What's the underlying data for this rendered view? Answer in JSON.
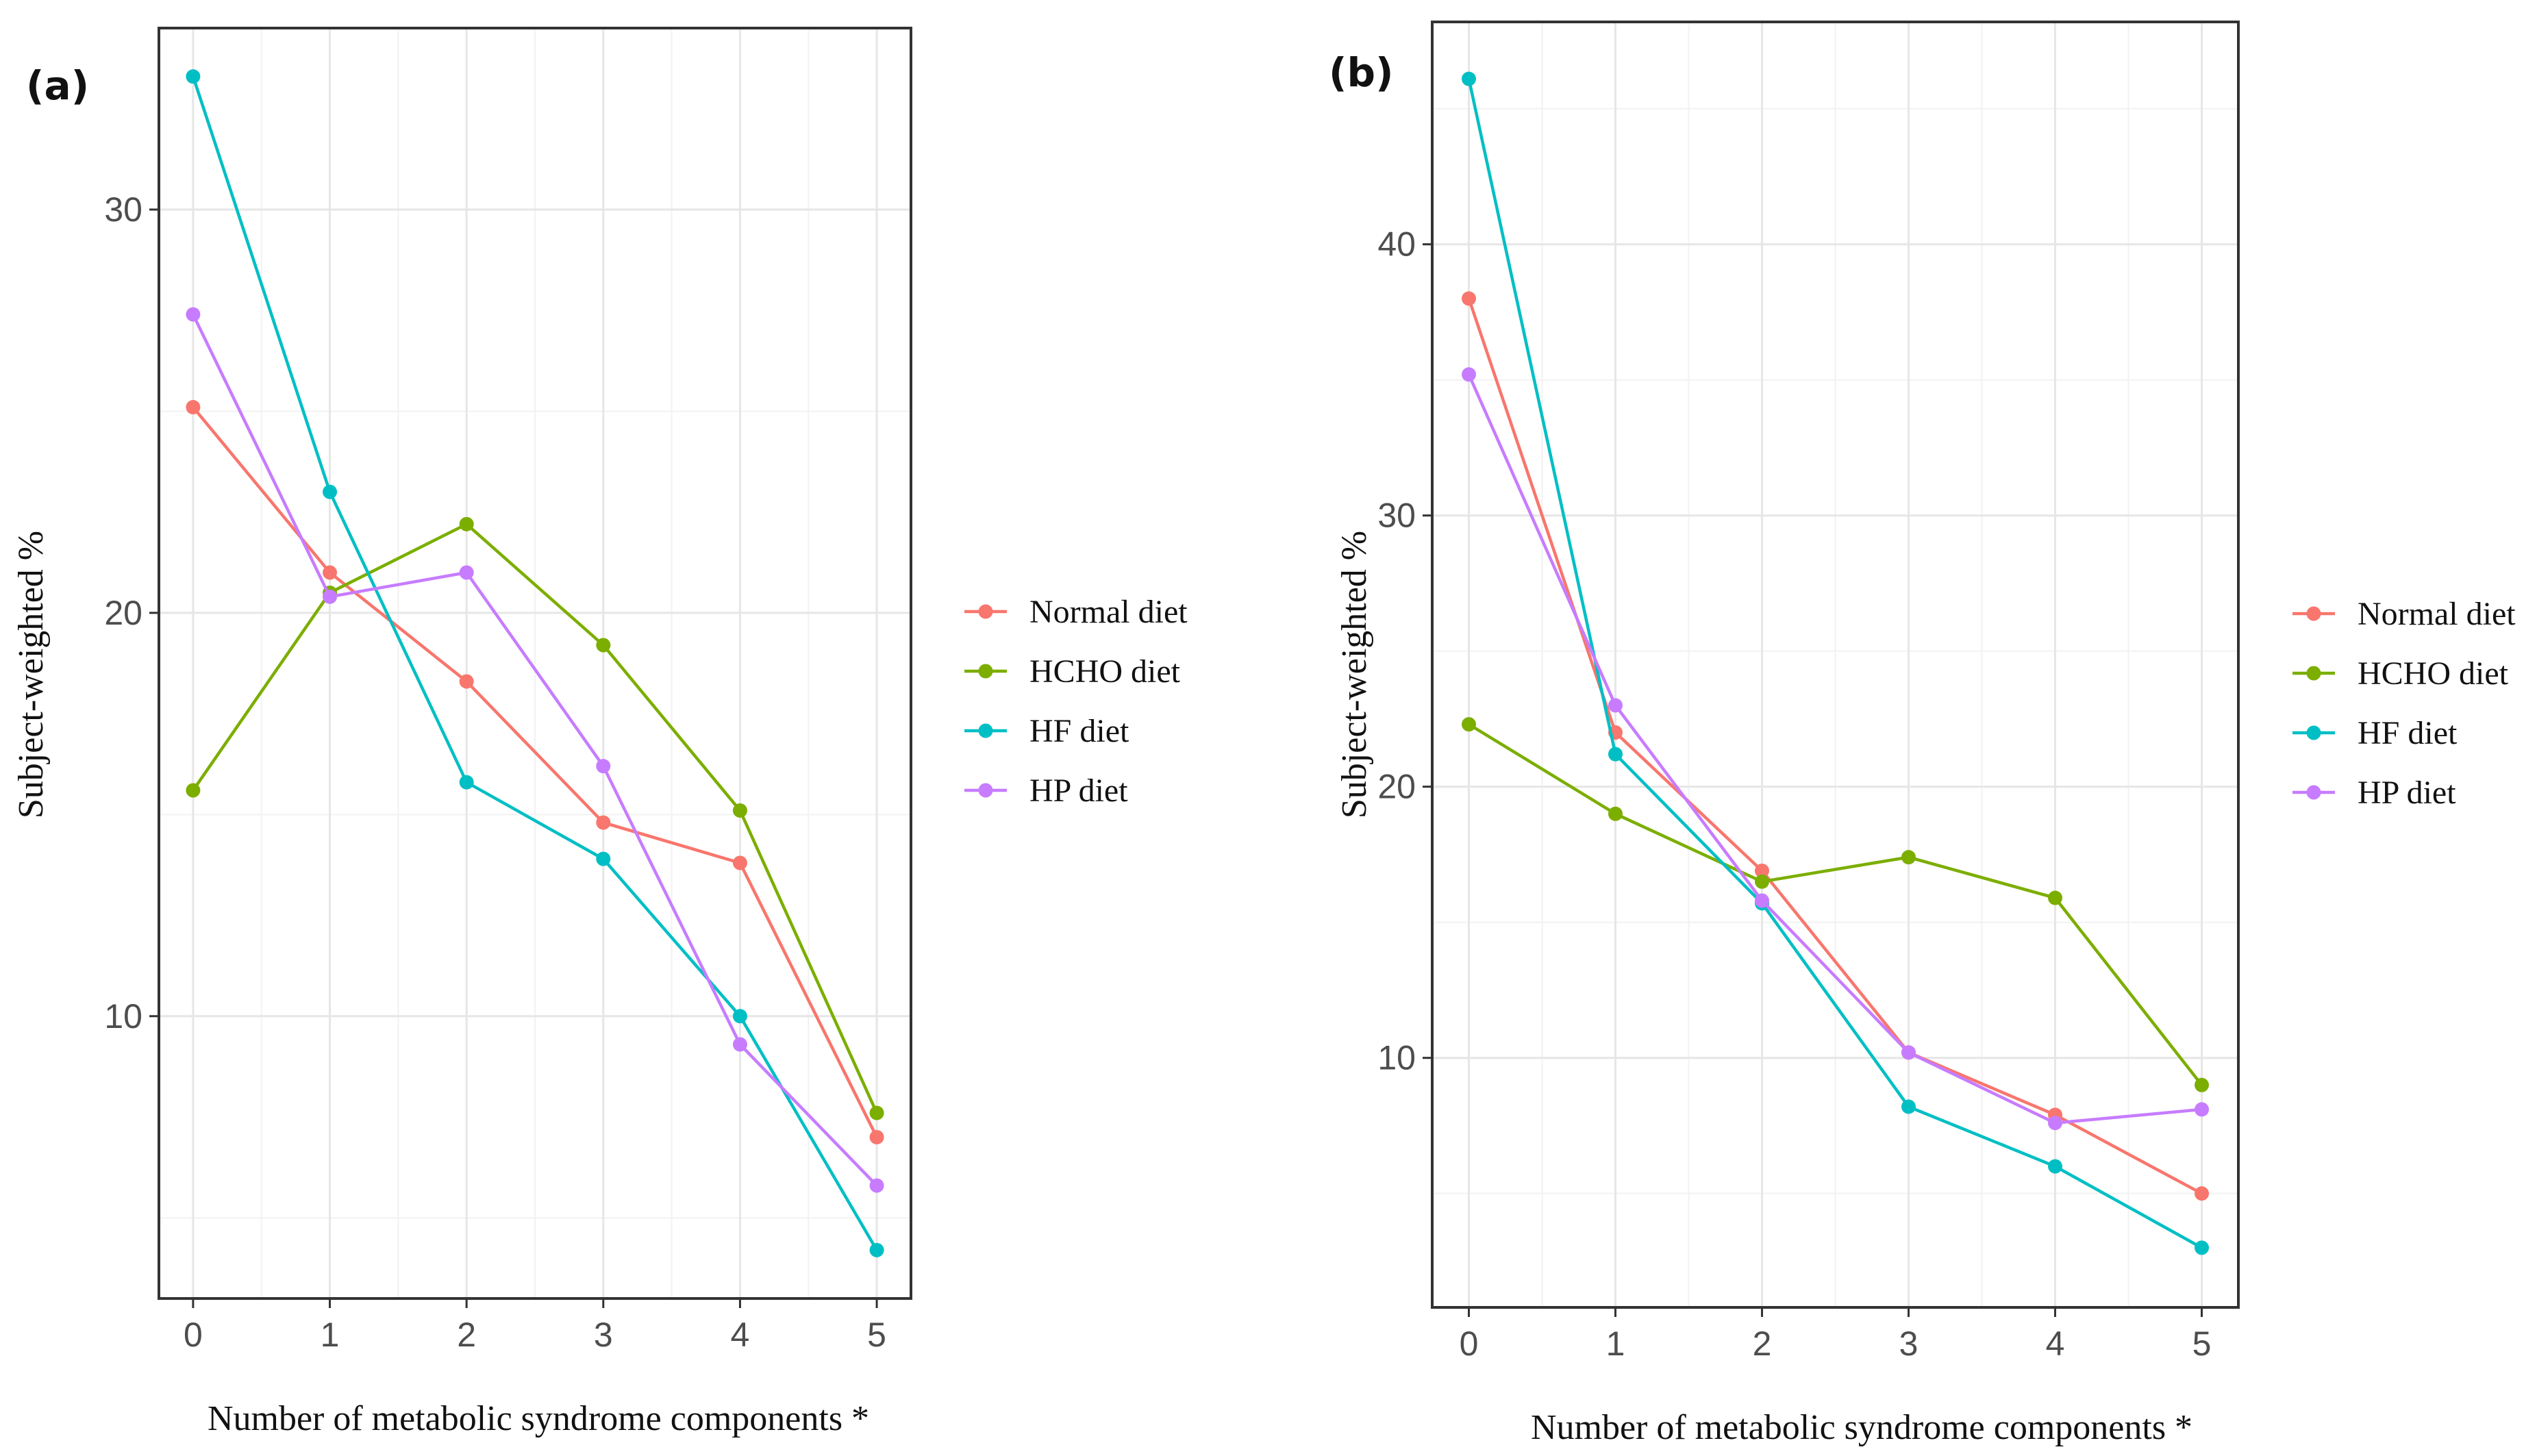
{
  "chart_data": [
    {
      "type": "line",
      "panel_label": "(a)",
      "title": "",
      "xlabel": "Number of metabolic syndrome components *",
      "ylabel": "Subject-weighted %",
      "x": [
        0,
        1,
        2,
        3,
        4,
        5
      ],
      "x_tick_labels": [
        "0",
        "1",
        "2",
        "3",
        "4",
        "5"
      ],
      "y_tick_labels": [
        "10",
        "20",
        "30"
      ],
      "y_ticks": [
        10,
        20,
        30
      ],
      "y_minor_ticks": [
        5,
        15,
        25
      ],
      "xlim": [
        -0.25,
        5.25
      ],
      "ylim": [
        3.0,
        34.5
      ],
      "grid": true,
      "legend_position": "right",
      "series": [
        {
          "name": "Normal diet",
          "color": "#F8766D",
          "values": [
            25.1,
            21.0,
            18.3,
            14.8,
            13.8,
            7.0
          ]
        },
        {
          "name": "HCHO diet",
          "color": "#7CAE00",
          "values": [
            15.6,
            20.5,
            22.2,
            19.2,
            15.1,
            7.6
          ]
        },
        {
          "name": "HF diet",
          "color": "#00BFC4",
          "values": [
            33.3,
            23.0,
            15.8,
            13.9,
            10.0,
            4.2
          ]
        },
        {
          "name": "HP diet",
          "color": "#C77CFF",
          "values": [
            27.4,
            20.4,
            21.0,
            16.2,
            9.3,
            5.8
          ]
        }
      ]
    },
    {
      "type": "line",
      "panel_label": "(b)",
      "title": "",
      "xlabel": "Number of metabolic syndrome components *",
      "ylabel": "Subject-weighted %",
      "x": [
        0,
        1,
        2,
        3,
        4,
        5
      ],
      "x_tick_labels": [
        "0",
        "1",
        "2",
        "3",
        "4",
        "5"
      ],
      "y_tick_labels": [
        "10",
        "20",
        "30",
        "40"
      ],
      "y_ticks": [
        10,
        20,
        30,
        40
      ],
      "y_minor_ticks": [
        5,
        15,
        25,
        35,
        45
      ],
      "xlim": [
        -0.25,
        5.25
      ],
      "ylim": [
        0.8,
        48.2
      ],
      "grid": true,
      "legend_position": "right",
      "series": [
        {
          "name": "Normal diet",
          "color": "#F8766D",
          "values": [
            38.0,
            22.0,
            16.9,
            10.2,
            7.9,
            5.0
          ]
        },
        {
          "name": "HCHO diet",
          "color": "#7CAE00",
          "values": [
            22.3,
            19.0,
            16.5,
            17.4,
            15.9,
            9.0
          ]
        },
        {
          "name": "HF diet",
          "color": "#00BFC4",
          "values": [
            46.1,
            21.2,
            15.7,
            8.2,
            6.0,
            3.0
          ]
        },
        {
          "name": "HP diet",
          "color": "#C77CFF",
          "values": [
            35.2,
            23.0,
            15.8,
            10.2,
            7.6,
            8.1
          ]
        }
      ]
    }
  ]
}
